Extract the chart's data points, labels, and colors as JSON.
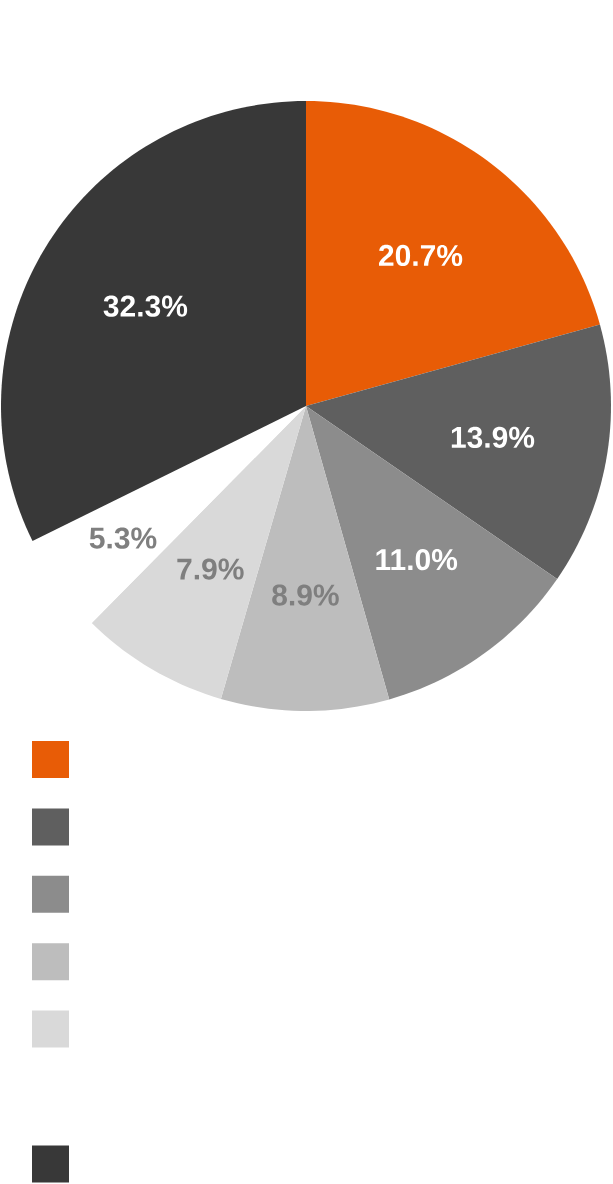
{
  "chart_data": {
    "type": "pie",
    "categories": [
      null,
      null,
      null,
      null,
      null,
      null,
      null
    ],
    "values": [
      20.7,
      13.9,
      11.0,
      8.9,
      7.9,
      5.3,
      32.3
    ],
    "colors": [
      "#e85c06",
      "#5f5f5f",
      "#8c8c8c",
      "#bdbdbd",
      "#d9d9d9",
      "#ffffff",
      "#383838"
    ],
    "value_labels": [
      "20.7%",
      "13.9%",
      "11.0%",
      "8.9%",
      "7.9%",
      "5.3%",
      "32.3%"
    ]
  }
}
